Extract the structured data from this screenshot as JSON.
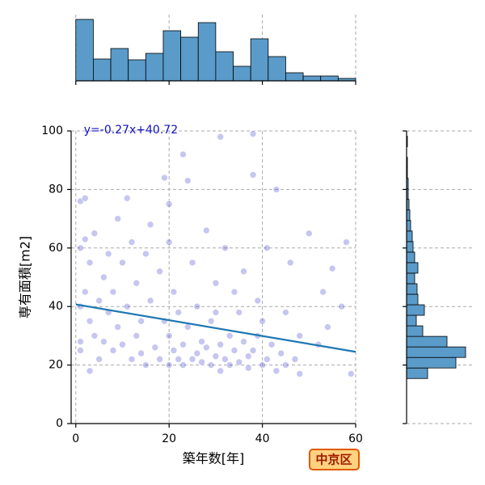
{
  "chart_data": [
    {
      "type": "scatter",
      "xlabel": "築年数[年]",
      "ylabel": "専有面積[m2]",
      "x": [
        1,
        1,
        1,
        1,
        1,
        2,
        2,
        2,
        3,
        3,
        3,
        4,
        4,
        5,
        5,
        6,
        6,
        7,
        7,
        8,
        8,
        9,
        9,
        10,
        10,
        11,
        11,
        12,
        12,
        13,
        13,
        14,
        14,
        15,
        15,
        16,
        16,
        17,
        18,
        18,
        19,
        19,
        20,
        20,
        20,
        20,
        21,
        21,
        22,
        22,
        23,
        23,
        23,
        24,
        24,
        25,
        25,
        26,
        26,
        27,
        27,
        28,
        28,
        29,
        29,
        30,
        30,
        31,
        31,
        32,
        32,
        33,
        33,
        34,
        34,
        35,
        35,
        36,
        36,
        37,
        37,
        38,
        38,
        38,
        39,
        39,
        40,
        40,
        41,
        41,
        42,
        43,
        43,
        44,
        45,
        45,
        46,
        47,
        48,
        48,
        50,
        52,
        54,
        55,
        57,
        58,
        59,
        53,
        31,
        30
      ],
      "y": [
        25,
        28,
        40,
        60,
        76,
        45,
        63,
        77,
        18,
        35,
        55,
        30,
        65,
        22,
        42,
        28,
        50,
        38,
        58,
        25,
        45,
        33,
        70,
        27,
        55,
        40,
        77,
        22,
        62,
        30,
        48,
        24,
        35,
        58,
        20,
        42,
        68,
        26,
        22,
        52,
        35,
        84,
        20,
        30,
        62,
        75,
        25,
        45,
        22,
        38,
        92,
        27,
        20,
        33,
        83,
        22,
        55,
        24,
        40,
        28,
        21,
        26,
        66,
        20,
        35,
        23,
        48,
        27,
        18,
        22,
        60,
        30,
        20,
        25,
        45,
        21,
        38,
        28,
        52,
        19,
        23,
        85,
        99,
        25,
        30,
        42,
        20,
        35,
        22,
        60,
        27,
        18,
        80,
        24,
        38,
        20,
        55,
        22,
        17,
        30,
        65,
        27,
        33,
        53,
        40,
        62,
        17,
        45,
        98,
        38
      ],
      "color": "#3333cc",
      "regression": {
        "slope": -0.27,
        "intercept": 40.72,
        "label": "y=-0.27x+40.72",
        "color": "#1f77b4"
      },
      "xlim": [
        -1,
        60
      ],
      "xticks": [
        0,
        20,
        40,
        60
      ],
      "ylim": [
        0,
        100
      ],
      "yticks": [
        0,
        20,
        40,
        60,
        80,
        100
      ],
      "grid": true,
      "badge": "中京区"
    },
    {
      "type": "histogram",
      "orientation": "vertical",
      "color": "#5a9bc9",
      "bins": [
        0,
        3.75,
        7.5,
        11.25,
        15,
        18.75,
        22.5,
        26.25,
        30,
        33.75,
        37.5,
        41.25,
        45,
        48.75,
        52.5,
        56.25,
        60
      ],
      "counts": [
        76,
        27,
        40,
        26,
        34,
        62,
        54,
        72,
        36,
        18,
        52,
        30,
        10,
        6,
        6,
        3
      ]
    },
    {
      "type": "histogram",
      "orientation": "horizontal",
      "color": "#5a9bc9",
      "bins": [
        15.4,
        19,
        22.6,
        26.2,
        29.8,
        33.4,
        37,
        40.6,
        44.2,
        47.8,
        51.4,
        55,
        58.6,
        62.2,
        65.8,
        69.4,
        73,
        76.6,
        80.2,
        83.8,
        87.4,
        91,
        94.6,
        98.2
      ],
      "counts": [
        26,
        61,
        73,
        50,
        20,
        12,
        22,
        14,
        13,
        10,
        14,
        10,
        8,
        7,
        5,
        4,
        3,
        2,
        2,
        1,
        1,
        0,
        1
      ]
    }
  ]
}
